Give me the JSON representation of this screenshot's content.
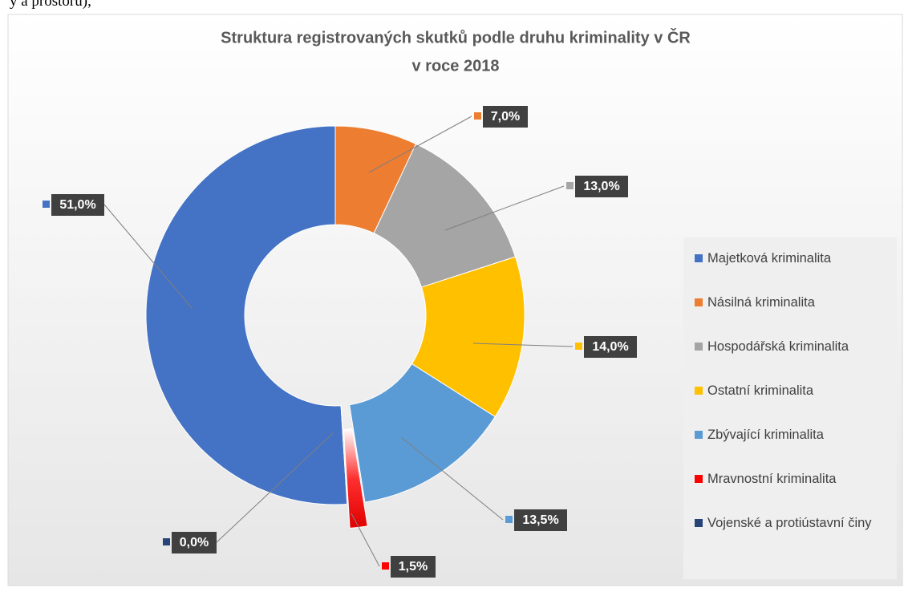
{
  "fragment": "y a prostoru),",
  "chart_data": {
    "type": "donut",
    "title": [
      "Struktura registrovaných skutků podle druhu kriminality v ČR",
      "v roce 2018"
    ],
    "categories": [
      "Majetková kriminalita",
      "Násilná kriminalita",
      "Hospodářská kriminalita",
      "Ostatní kriminalita",
      "Zbývající kriminalita",
      "Mravnostní kriminalita",
      "Vojenské a protiústavní činy"
    ],
    "values": [
      51,
      7,
      13,
      14,
      13.5,
      1.5,
      0
    ],
    "value_labels": [
      "51,0%",
      "7,0%",
      "13,0%",
      "14,0%",
      "13,5%",
      "1,5%",
      "0,0%"
    ],
    "colors": [
      "#4472c4",
      "#ed7d31",
      "#a5a5a5",
      "#ffc000",
      "#5b9bd5",
      "#ff0000",
      "#264478"
    ],
    "exploded": [
      5
    ],
    "legend": "right"
  }
}
